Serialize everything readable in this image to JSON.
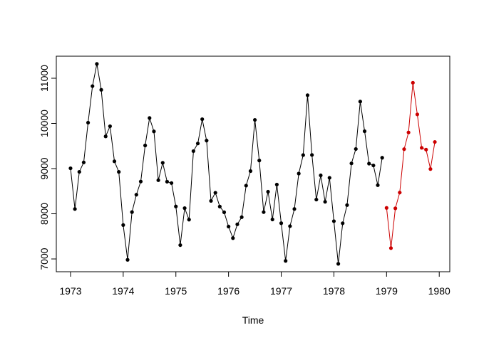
{
  "chart_data": {
    "type": "line",
    "xlabel": "Time",
    "xlim": [
      1972.73,
      1980.2
    ],
    "ylim": [
      6717,
      11488
    ],
    "xticks": [
      1973,
      1974,
      1975,
      1976,
      1977,
      1978,
      1979,
      1980
    ],
    "yticks": [
      7000,
      8000,
      9000,
      10000,
      11000
    ],
    "series": [
      {
        "color": "#000000",
        "x": [
          1973,
          1973.0833,
          1973.1667,
          1973.25,
          1973.3333,
          1973.4167,
          1973.5,
          1973.5833,
          1973.6667,
          1973.75,
          1973.8333,
          1973.9167,
          1974,
          1974.0833,
          1974.1667,
          1974.25,
          1974.3333,
          1974.4167,
          1974.5,
          1974.5833,
          1974.6667,
          1974.75,
          1974.8333,
          1974.9167,
          1975,
          1975.0833,
          1975.1667,
          1975.25,
          1975.3333,
          1975.4167,
          1975.5,
          1975.5833,
          1975.6667,
          1975.75,
          1975.8333,
          1975.9167,
          1976,
          1976.0833,
          1976.1667,
          1976.25,
          1976.3333,
          1976.4167,
          1976.5,
          1976.5833,
          1976.6667,
          1976.75,
          1976.8333,
          1976.9167,
          1977,
          1977.0833,
          1977.1667,
          1977.25,
          1977.3333,
          1977.4167,
          1977.5,
          1977.5833,
          1977.6667,
          1977.75,
          1977.8333,
          1977.9167,
          1978,
          1978.0833,
          1978.1667,
          1978.25,
          1978.3333,
          1978.4167,
          1978.5,
          1978.5833,
          1978.6667,
          1978.75,
          1978.8333,
          1978.9167
        ],
        "values": [
          9007,
          8106,
          8928,
          9137,
          10017,
          10826,
          11317,
          10744,
          9713,
          9938,
          9161,
          8927,
          7750,
          6981,
          8038,
          8422,
          8714,
          9512,
          10120,
          9823,
          8743,
          9129,
          8710,
          8680,
          8162,
          7306,
          8124,
          7870,
          9387,
          9556,
          10093,
          9620,
          8285,
          8466,
          8160,
          8034,
          7717,
          7461,
          7767,
          7925,
          8623,
          8945,
          10078,
          9179,
          8037,
          8488,
          7874,
          8647,
          7792,
          6957,
          7726,
          8106,
          8890,
          9299,
          10625,
          9302,
          8314,
          8850,
          8265,
          8796,
          7836,
          6892,
          7791,
          8192,
          9115,
          9434,
          10484,
          9827,
          9110,
          9070,
          8633,
          9240
        ]
      },
      {
        "color": "#cc0000",
        "x": [
          1979,
          1979.0833,
          1979.1667,
          1979.25,
          1979.3333,
          1979.4167,
          1979.5,
          1979.5833,
          1979.6667,
          1979.75,
          1979.8333,
          1979.9167
        ],
        "values": [
          8130,
          7240,
          8120,
          8470,
          9430,
          9800,
          10900,
          10200,
          9460,
          9420,
          8990,
          9590
        ]
      }
    ]
  }
}
